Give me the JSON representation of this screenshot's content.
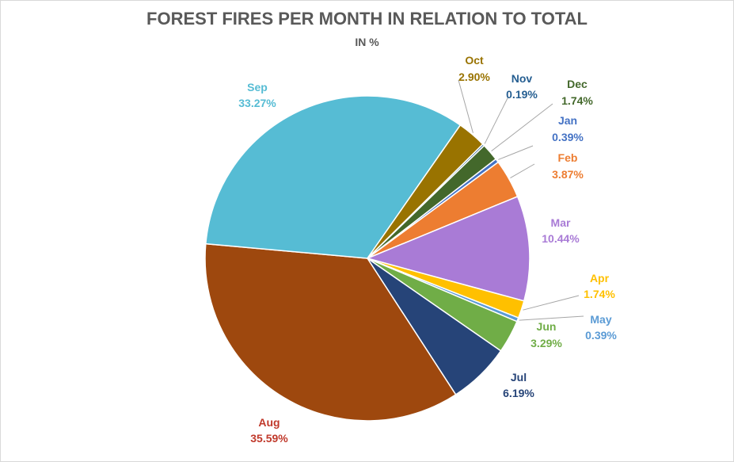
{
  "chart_data": {
    "type": "pie",
    "title": "FOREST FIRES PER MONTH IN RELATION TO TOTAL",
    "subtitle": "IN %",
    "slices": [
      {
        "label": "Jan",
        "value": 0.39,
        "value_label": "0.39%",
        "color": "#4472c4",
        "label_color": "#4472c4"
      },
      {
        "label": "Feb",
        "value": 3.87,
        "value_label": "3.87%",
        "color": "#ed7d31",
        "label_color": "#ed7d31"
      },
      {
        "label": "Mar",
        "value": 10.44,
        "value_label": "10.44%",
        "color": "#a97bd6",
        "label_color": "#a97bd6"
      },
      {
        "label": "Apr",
        "value": 1.74,
        "value_label": "1.74%",
        "color": "#ffc000",
        "label_color": "#ffc000"
      },
      {
        "label": "May",
        "value": 0.39,
        "value_label": "0.39%",
        "color": "#5b9bd5",
        "label_color": "#5b9bd5"
      },
      {
        "label": "Jun",
        "value": 3.29,
        "value_label": "3.29%",
        "color": "#70ad47",
        "label_color": "#70ad47"
      },
      {
        "label": "Jul",
        "value": 6.19,
        "value_label": "6.19%",
        "color": "#264478",
        "label_color": "#264478"
      },
      {
        "label": "Aug",
        "value": 35.59,
        "value_label": "35.59%",
        "color": "#9e480e",
        "label_color": "#c0392b"
      },
      {
        "label": "Sep",
        "value": 33.27,
        "value_label": "33.27%",
        "color": "#56bcd4",
        "label_color": "#56bcd4"
      },
      {
        "label": "Oct",
        "value": 2.9,
        "value_label": "2.90%",
        "color": "#997300",
        "label_color": "#997300"
      },
      {
        "label": "Nov",
        "value": 0.19,
        "value_label": "0.19%",
        "color": "#255e91",
        "label_color": "#255e91"
      },
      {
        "label": "Dec",
        "value": 1.74,
        "value_label": "1.74%",
        "color": "#43682b",
        "label_color": "#43682b"
      }
    ],
    "legend": "none",
    "data_labels": "outside-with-leader-lines"
  }
}
